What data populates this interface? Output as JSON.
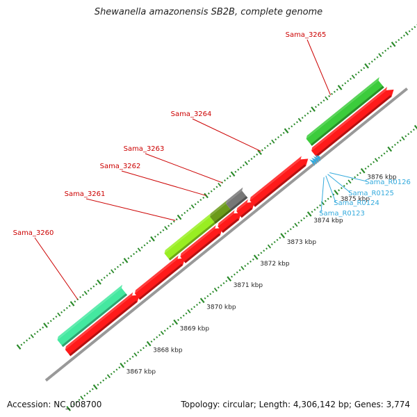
{
  "title": "Shewanella amazonensis SB2B, complete genome",
  "footer": {
    "accession": "Accession: NC_008700",
    "topology": "Topology: circular; Length: 4,306,142 bp; Genes: 3,774"
  },
  "colors": {
    "backbone": "#999999",
    "tick": "#2a8a2a",
    "cds": "#ff1a1a",
    "tick_label": "#222222",
    "gene_label": "#cc0000",
    "rna_label": "#33aadd"
  },
  "chart_data": {
    "type": "genome_map",
    "scale": [
      {
        "pos_kbp": 3867,
        "label": "3867 kbp"
      },
      {
        "pos_kbp": 3868,
        "label": "3868 kbp"
      },
      {
        "pos_kbp": 3869,
        "label": "3869 kbp"
      },
      {
        "pos_kbp": 3870,
        "label": "3870 kbp"
      },
      {
        "pos_kbp": 3871,
        "label": "3871 kbp"
      },
      {
        "pos_kbp": 3872,
        "label": "3872 kbp"
      },
      {
        "pos_kbp": 3873,
        "label": "3873 kbp"
      },
      {
        "pos_kbp": 3874,
        "label": "3874 kbp"
      },
      {
        "pos_kbp": 3875,
        "label": "3875 kbp"
      },
      {
        "pos_kbp": 3876,
        "label": "3876 kbp"
      }
    ],
    "cds": [
      {
        "start_kbp": 3866.0,
        "end_kbp": 3868.5
      },
      {
        "start_kbp": 3868.6,
        "end_kbp": 3870.2
      },
      {
        "start_kbp": 3870.3,
        "end_kbp": 3871.6
      },
      {
        "start_kbp": 3871.7,
        "end_kbp": 3872.3
      },
      {
        "start_kbp": 3872.4,
        "end_kbp": 3872.8
      },
      {
        "start_kbp": 3872.9,
        "end_kbp": 3874.8
      },
      {
        "start_kbp": 3875.2,
        "end_kbp": 3878.0
      }
    ],
    "genes": [
      {
        "name": "Sama_3260",
        "start_kbp": 3866.0,
        "end_kbp": 3868.4,
        "color": "#44e8a0",
        "label_pos": [
          48,
          338
        ]
      },
      {
        "name": "Sama_3261",
        "start_kbp": 3870.0,
        "end_kbp": 3871.7,
        "color": "#99ee22",
        "label_pos": [
          122,
          282
        ]
      },
      {
        "name": "Sama_3262",
        "start_kbp": 3871.7,
        "end_kbp": 3872.3,
        "color": "#6b9a1a",
        "label_pos": [
          173,
          242
        ]
      },
      {
        "name": "Sama_3263",
        "start_kbp": 3872.3,
        "end_kbp": 3872.9,
        "color": "#777777",
        "label_pos": [
          207,
          217
        ]
      },
      {
        "name": "Sama_3264",
        "start_kbp": 3873.2,
        "end_kbp": 3874.9,
        "color": null,
        "label_pos": [
          275,
          167
        ]
      },
      {
        "name": "Sama_3265",
        "start_kbp": 3875.3,
        "end_kbp": 3878.0,
        "color": "#3ccc3c",
        "label_pos": [
          440,
          53
        ]
      }
    ],
    "rnas": [
      {
        "name": "Sama_R0123",
        "pos_kbp": 3875.0,
        "label_pos": [
          492,
          310
        ]
      },
      {
        "name": "Sama_R0124",
        "pos_kbp": 3875.07,
        "label_pos": [
          513,
          295
        ]
      },
      {
        "name": "Sama_R0125",
        "pos_kbp": 3875.14,
        "label_pos": [
          534,
          281
        ]
      },
      {
        "name": "Sama_R0126",
        "pos_kbp": 3875.21,
        "label_pos": [
          558,
          265
        ]
      }
    ]
  }
}
